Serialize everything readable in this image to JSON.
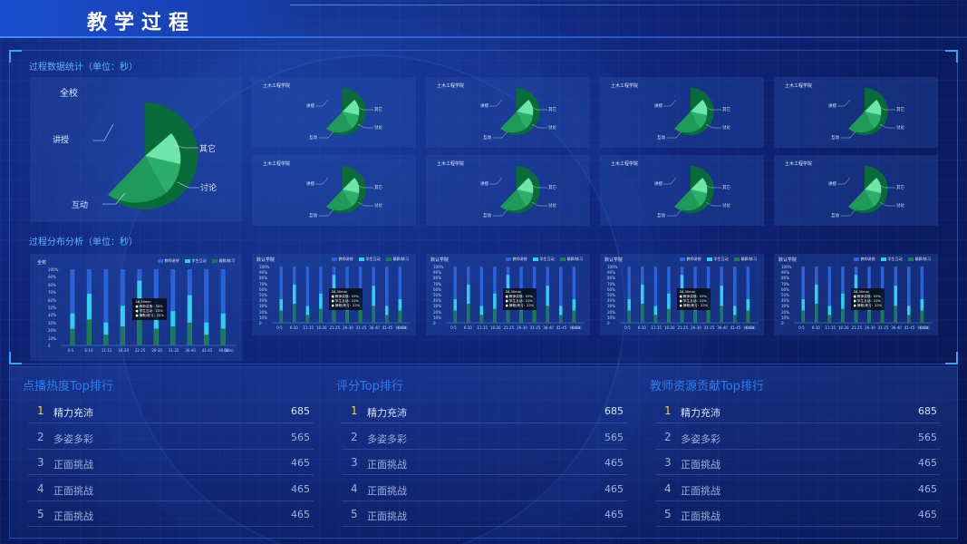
{
  "header": {
    "title": "教学过程"
  },
  "section_stats": {
    "title": "过程数据统计（单位：秒）"
  },
  "section_dist": {
    "title": "过程分布分析（单位：秒）"
  },
  "colors": {
    "pie_main": "#0a6b3a",
    "pie_mid": "#1e9a5b",
    "pie_light": "#3ac07a",
    "pie_pale": "#6ee6aa",
    "bar_track": "#2c62d8",
    "bar_cyan": "#2fd0ee",
    "bar_green": "#1e7a55"
  },
  "big_pie": {
    "title": "全校",
    "labels": [
      "讲授",
      "其它",
      "讨论",
      "互动"
    ]
  },
  "small_pies": [
    {
      "title": "土木工程学院",
      "labels": [
        "讲授",
        "其它",
        "讨论",
        "互动"
      ]
    },
    {
      "title": "土木工程学院",
      "labels": [
        "讲授",
        "其它",
        "讨论",
        "互动"
      ]
    },
    {
      "title": "土木工程学院",
      "labels": [
        "讲授",
        "其它",
        "讨论",
        "互动"
      ]
    },
    {
      "title": "土木工程学院",
      "labels": [
        "讲授",
        "其它",
        "讨论",
        "互动"
      ]
    },
    {
      "title": "土木工程学院",
      "labels": [
        "讲授",
        "其它",
        "讨论",
        "互动"
      ]
    },
    {
      "title": "土木工程学院",
      "labels": [
        "讲授",
        "其它",
        "讨论",
        "互动"
      ]
    },
    {
      "title": "土木工程学院",
      "labels": [
        "讲授",
        "其它",
        "讨论",
        "互动"
      ]
    },
    {
      "title": "土木工程学院",
      "labels": [
        "讲授",
        "其它",
        "讨论",
        "互动"
      ]
    }
  ],
  "legend": [
    "教师讲授",
    "学生互动",
    "静默/练习"
  ],
  "bar_charts": [
    {
      "title": "全校"
    },
    {
      "title": "默认学院"
    },
    {
      "title": "默认学院"
    },
    {
      "title": "默认学院"
    },
    {
      "title": "默认学院"
    }
  ],
  "bar_axis": {
    "yticks": [
      "100%",
      "90%",
      "80%",
      "70%",
      "60%",
      "50%",
      "40%",
      "30%",
      "20%",
      "10%",
      "0"
    ],
    "categories": [
      "0-5",
      "6-10",
      "11-15",
      "16-20",
      "21-25",
      "26-30",
      "31-35",
      "36-40",
      "41-45",
      "46-50"
    ],
    "unit": "(min)"
  },
  "tooltip": {
    "title": "26-30min",
    "lines": [
      "● 教师讲授：55%",
      "● 学生互动：23%",
      "● 静默/练习：22%"
    ]
  },
  "rankings": [
    {
      "title": "点播热度Top排行",
      "rows": [
        {
          "rank": "1",
          "name": "精力充沛",
          "score": "685"
        },
        {
          "rank": "2",
          "name": "多姿多彩",
          "score": "565"
        },
        {
          "rank": "3",
          "name": "正面挑战",
          "score": "465"
        },
        {
          "rank": "4",
          "name": "正面挑战",
          "score": "465"
        },
        {
          "rank": "5",
          "name": "正面挑战",
          "score": "465"
        }
      ]
    },
    {
      "title": "评分Top排行",
      "rows": [
        {
          "rank": "1",
          "name": "精力充沛",
          "score": "685"
        },
        {
          "rank": "2",
          "name": "多姿多彩",
          "score": "565"
        },
        {
          "rank": "3",
          "name": "正面挑战",
          "score": "465"
        },
        {
          "rank": "4",
          "name": "正面挑战",
          "score": "465"
        },
        {
          "rank": "5",
          "name": "正面挑战",
          "score": "465"
        }
      ]
    },
    {
      "title": "教师资源贡献Top排行",
      "rows": [
        {
          "rank": "1",
          "name": "精力充沛",
          "score": "685"
        },
        {
          "rank": "2",
          "name": "多姿多彩",
          "score": "565"
        },
        {
          "rank": "3",
          "name": "正面挑战",
          "score": "465"
        },
        {
          "rank": "4",
          "name": "正面挑战",
          "score": "465"
        },
        {
          "rank": "5",
          "name": "正面挑战",
          "score": "465"
        }
      ]
    }
  ]
}
